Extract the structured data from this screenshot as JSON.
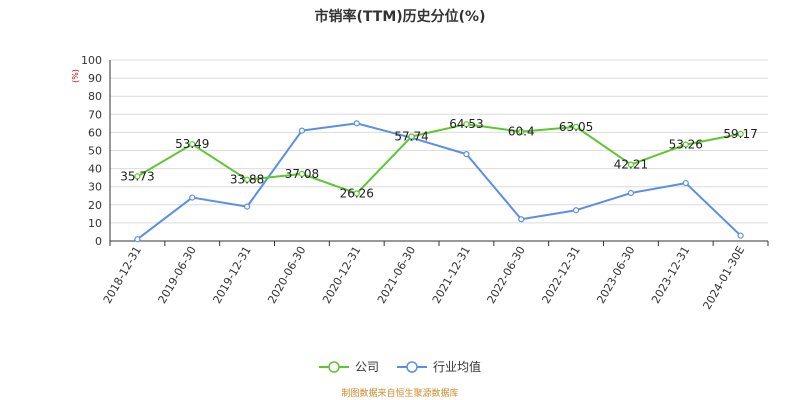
{
  "chart_data": {
    "type": "line",
    "title": "市销率(TTM)历史分位(%)",
    "ylabel": "(%)",
    "ylim": [
      0,
      100
    ],
    "yticks": [
      0,
      10,
      20,
      30,
      40,
      50,
      60,
      70,
      80,
      90,
      100
    ],
    "categories": [
      "2018-12-31",
      "2019-06-30",
      "2019-12-31",
      "2020-06-30",
      "2020-12-31",
      "2021-06-30",
      "2021-12-31",
      "2022-06-30",
      "2022-12-31",
      "2023-06-30",
      "2023-12-31",
      "2024-01-30E"
    ],
    "series": [
      {
        "name": "公司",
        "color": "#5ec62e",
        "values": [
          35.73,
          53.49,
          33.88,
          37.08,
          26.26,
          57.74,
          64.53,
          60.4,
          63.05,
          42.21,
          53.26,
          59.17
        ],
        "labels": true
      },
      {
        "name": "行业均值",
        "color": "#5b8ee6",
        "values": [
          1,
          24,
          19,
          61,
          65,
          57,
          48,
          12,
          17,
          26.5,
          32,
          3
        ],
        "labels": false
      }
    ],
    "grid": true,
    "legend": "bottom-center"
  },
  "footer": "制图数据来自恒生聚源数据库"
}
